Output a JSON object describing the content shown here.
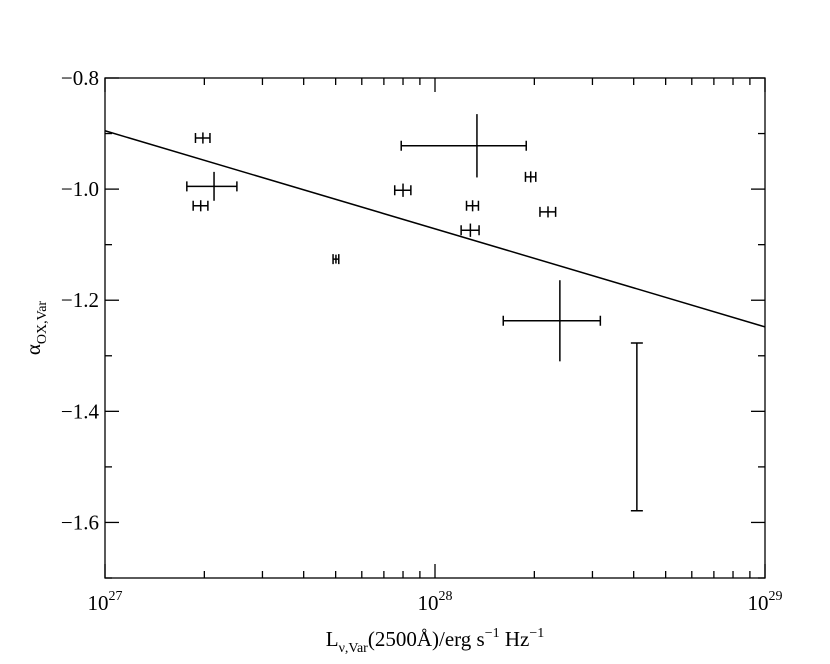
{
  "chart_data": {
    "type": "scatter",
    "xscale": "log",
    "xlim": [
      1e+27,
      1e+29
    ],
    "ylim": [
      -0.8,
      -1.7
    ],
    "xticks": [
      {
        "value": 1e+27,
        "label": "10",
        "sup": "27"
      },
      {
        "value": 1e+28,
        "label": "10",
        "sup": "28"
      },
      {
        "value": 1e+29,
        "label": "10",
        "sup": "29"
      }
    ],
    "xminorticks": [
      2e+27,
      3e+27,
      4e+27,
      5e+27,
      6e+27,
      7e+27,
      8e+27,
      9e+27,
      2e+28,
      3e+28,
      4e+28,
      5e+28,
      6e+28,
      7e+28,
      8e+28,
      9e+28
    ],
    "yticks": [
      {
        "value": -0.8,
        "label": "−0.8"
      },
      {
        "value": -1.0,
        "label": "−1.0"
      },
      {
        "value": -1.2,
        "label": "−1.2"
      },
      {
        "value": -1.4,
        "label": "−1.4"
      },
      {
        "value": -1.6,
        "label": "−1.6"
      }
    ],
    "yminorticks": [
      -0.9,
      -1.1,
      -1.3,
      -1.5,
      -1.7
    ],
    "xlabel_parts": [
      {
        "text": "L"
      },
      {
        "text": "ν,Var",
        "script": "sub"
      },
      {
        "text": "(2500Å)/erg s"
      },
      {
        "text": "−1",
        "script": "sup"
      },
      {
        "text": " Hz"
      },
      {
        "text": "−1",
        "script": "sup"
      }
    ],
    "ylabel_parts": [
      {
        "text": "α"
      },
      {
        "text": "OX,Var",
        "script": "sub"
      }
    ],
    "series": [
      {
        "color": "#000000",
        "x": [
          1.98e+27,
          1.95e+27,
          2.14e+27,
          5.01e+27,
          8e+27,
          1.34e+28,
          1.95e+28,
          1.3e+28,
          1.28e+28,
          2.2e+28,
          2.39e+28,
          4.09e+28
        ],
        "y": [
          -0.908,
          -1.03,
          -0.995,
          -1.126,
          -1.002,
          -0.922,
          -0.978,
          -1.03,
          -1.074,
          -1.041,
          -1.237,
          -1.428
        ],
        "xerr": [
          1e+26,
          1e+26,
          3.7e+26,
          1e+26,
          4.5e+26,
          5.5e+27,
          7e+26,
          5.4e+26,
          8e+26,
          1.2e+27,
          7.8e+27,
          null
        ],
        "yerr": [
          0.01,
          0.01,
          0.026,
          0.008,
          0.012,
          0.057,
          0.01,
          0.01,
          0.012,
          0.01,
          0.073,
          0.151
        ]
      }
    ],
    "fit": {
      "color": "#000000",
      "x": [
        1e+27,
        1e+29
      ],
      "y": [
        -0.895,
        -1.248
      ]
    }
  }
}
